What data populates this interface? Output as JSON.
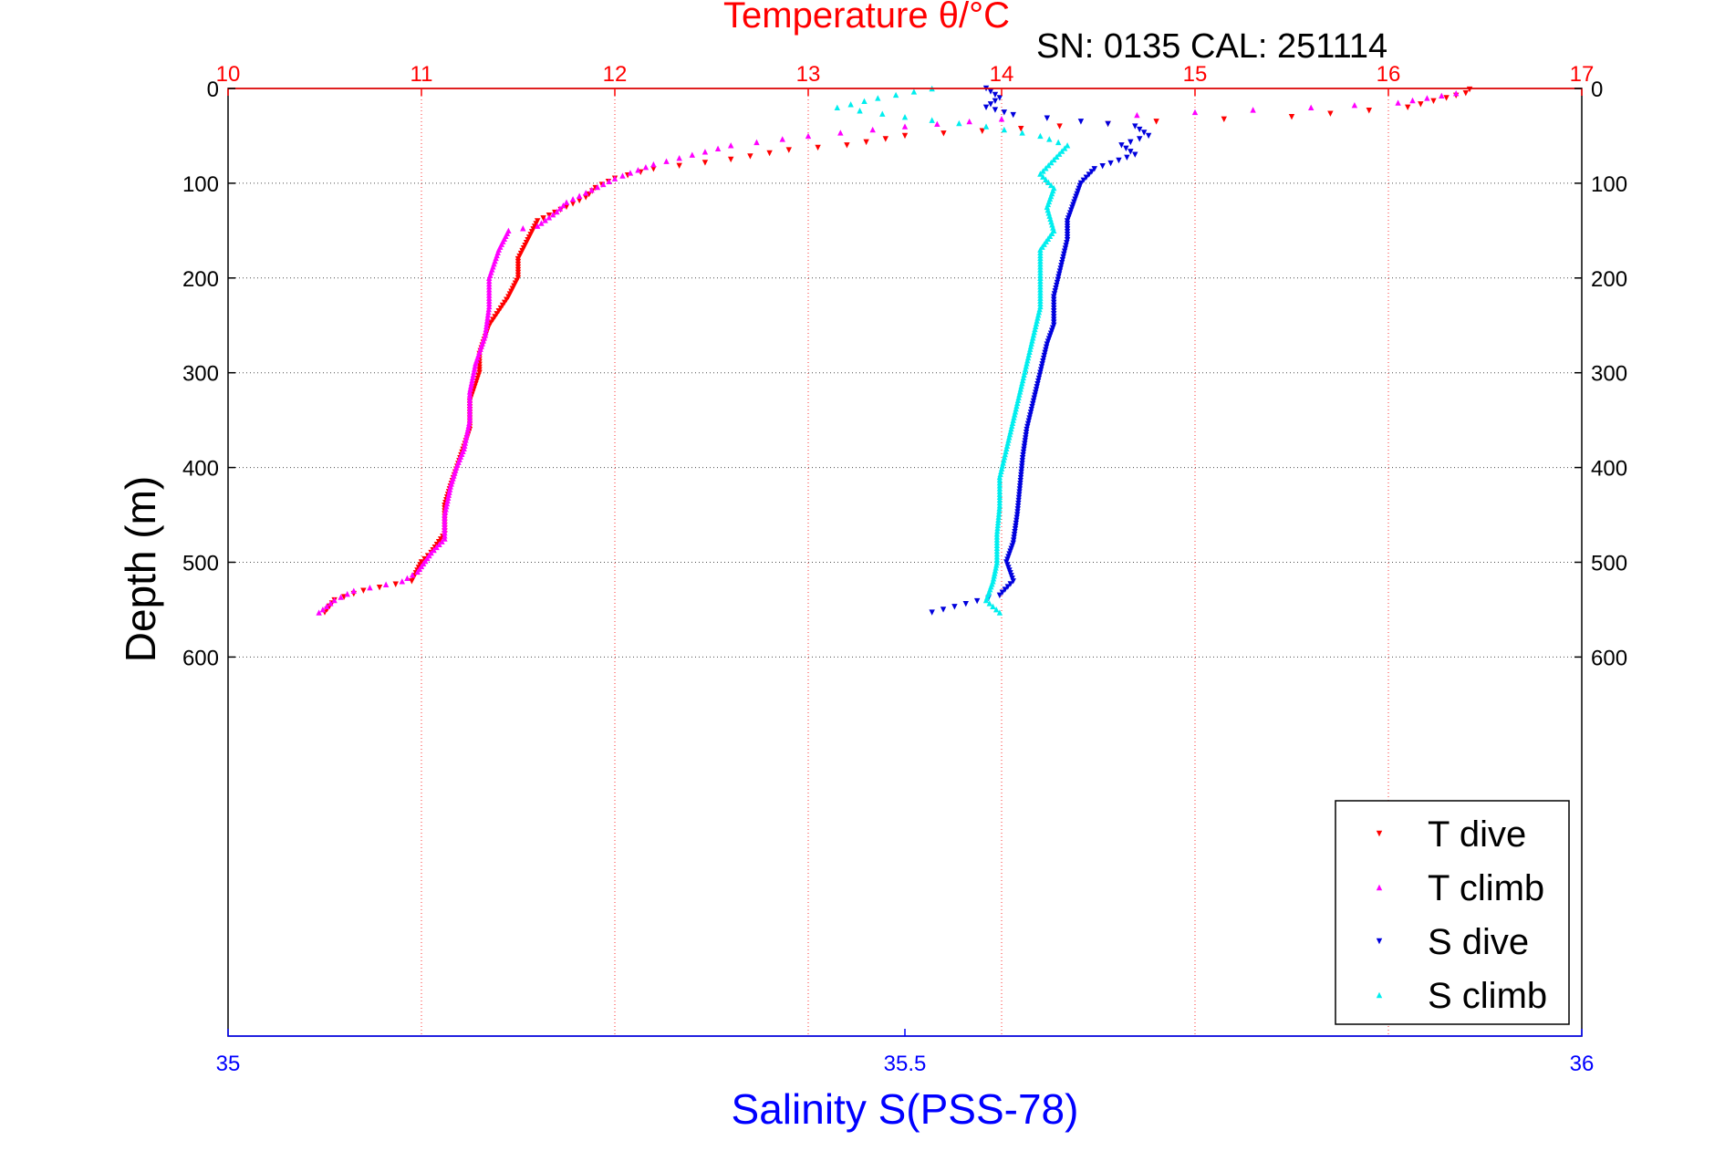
{
  "chart_data": {
    "type": "scatter",
    "title": "Temperature θ/°C",
    "subtitle": "SN: 0135  CAL: 251114",
    "top_axis": {
      "label": "Temperature θ/°C",
      "range": [
        10,
        17
      ],
      "ticks": [
        "10",
        "11",
        "12",
        "13",
        "14",
        "15",
        "16",
        "17"
      ],
      "color": "#ff0000"
    },
    "bottom_axis": {
      "label": "Salinity S(PSS-78)",
      "range": [
        35,
        36
      ],
      "ticks": [
        "35",
        "35.5",
        "36"
      ],
      "color": "#0000ff"
    },
    "y_axis": {
      "label": "Depth (m)",
      "range": [
        0,
        1000
      ],
      "inverted": true,
      "ticks": [
        "0",
        "100",
        "200",
        "300",
        "400",
        "500",
        "600"
      ]
    },
    "grid": true,
    "legend_position": "bottom-right",
    "legend": [
      "T dive",
      "T climb",
      "S dive",
      "S climb"
    ],
    "series": [
      {
        "name": "T dive",
        "axis": "temperature",
        "color": "#ff0000",
        "marker": "triangle-down",
        "points": [
          [
            16.42,
            1
          ],
          [
            16.4,
            5
          ],
          [
            16.3,
            10
          ],
          [
            16.1,
            20
          ],
          [
            15.5,
            30
          ],
          [
            14.8,
            35
          ],
          [
            14.3,
            40
          ],
          [
            13.9,
            45
          ],
          [
            13.5,
            50
          ],
          [
            13.2,
            60
          ],
          [
            12.9,
            65
          ],
          [
            12.6,
            75
          ],
          [
            12.2,
            85
          ],
          [
            12.0,
            95
          ],
          [
            11.9,
            105
          ],
          [
            11.85,
            115
          ],
          [
            11.75,
            125
          ],
          [
            11.6,
            140
          ],
          [
            11.55,
            160
          ],
          [
            11.5,
            180
          ],
          [
            11.5,
            200
          ],
          [
            11.45,
            220
          ],
          [
            11.35,
            250
          ],
          [
            11.3,
            280
          ],
          [
            11.3,
            300
          ],
          [
            11.25,
            330
          ],
          [
            11.25,
            360
          ],
          [
            11.2,
            390
          ],
          [
            11.15,
            420
          ],
          [
            11.12,
            440
          ],
          [
            11.12,
            470
          ],
          [
            11.05,
            490
          ],
          [
            11.0,
            500
          ],
          [
            10.95,
            520
          ],
          [
            10.7,
            530
          ],
          [
            10.55,
            540
          ],
          [
            10.5,
            553
          ]
        ]
      },
      {
        "name": "T climb",
        "axis": "temperature",
        "color": "#ff00ff",
        "marker": "triangle-up",
        "points": [
          [
            16.35,
            5
          ],
          [
            16.2,
            10
          ],
          [
            16.05,
            15
          ],
          [
            15.6,
            20
          ],
          [
            15.0,
            25
          ],
          [
            14.7,
            28
          ],
          [
            14.0,
            32
          ],
          [
            13.5,
            40
          ],
          [
            13.0,
            50
          ],
          [
            12.6,
            60
          ],
          [
            12.4,
            70
          ],
          [
            12.2,
            80
          ],
          [
            12.0,
            95
          ],
          [
            11.85,
            110
          ],
          [
            11.75,
            120
          ],
          [
            11.7,
            130
          ],
          [
            11.6,
            145
          ],
          [
            11.45,
            150
          ],
          [
            11.4,
            170
          ],
          [
            11.35,
            200
          ],
          [
            11.35,
            230
          ],
          [
            11.33,
            260
          ],
          [
            11.28,
            290
          ],
          [
            11.25,
            320
          ],
          [
            11.25,
            350
          ],
          [
            11.22,
            380
          ],
          [
            11.18,
            400
          ],
          [
            11.15,
            420
          ],
          [
            11.12,
            450
          ],
          [
            11.12,
            475
          ],
          [
            11.05,
            490
          ],
          [
            10.98,
            510
          ],
          [
            10.9,
            520
          ],
          [
            10.65,
            530
          ],
          [
            10.55,
            540
          ],
          [
            10.47,
            553
          ]
        ]
      },
      {
        "name": "S dive",
        "axis": "salinity",
        "color": "#0000dd",
        "marker": "triangle-down",
        "points": [
          [
            35.56,
            0
          ],
          [
            35.57,
            10
          ],
          [
            35.56,
            20
          ],
          [
            35.58,
            28
          ],
          [
            35.63,
            35
          ],
          [
            35.67,
            40
          ],
          [
            35.68,
            50
          ],
          [
            35.66,
            60
          ],
          [
            35.67,
            70
          ],
          [
            35.64,
            85
          ],
          [
            35.63,
            100
          ],
          [
            35.625,
            120
          ],
          [
            35.62,
            140
          ],
          [
            35.62,
            160
          ],
          [
            35.615,
            190
          ],
          [
            35.61,
            220
          ],
          [
            35.61,
            250
          ],
          [
            35.605,
            270
          ],
          [
            35.6,
            300
          ],
          [
            35.595,
            330
          ],
          [
            35.59,
            360
          ],
          [
            35.587,
            390
          ],
          [
            35.585,
            420
          ],
          [
            35.583,
            450
          ],
          [
            35.58,
            480
          ],
          [
            35.575,
            500
          ],
          [
            35.58,
            520
          ],
          [
            35.57,
            535
          ],
          [
            35.52,
            553
          ]
        ]
      },
      {
        "name": "S climb",
        "axis": "salinity",
        "color": "#00eeee",
        "marker": "triangle-up",
        "points": [
          [
            35.52,
            0
          ],
          [
            35.48,
            10
          ],
          [
            35.45,
            20
          ],
          [
            35.5,
            30
          ],
          [
            35.56,
            40
          ],
          [
            35.6,
            50
          ],
          [
            35.62,
            60
          ],
          [
            35.61,
            75
          ],
          [
            35.6,
            90
          ],
          [
            35.61,
            105
          ],
          [
            35.605,
            125
          ],
          [
            35.61,
            150
          ],
          [
            35.6,
            170
          ],
          [
            35.6,
            200
          ],
          [
            35.6,
            230
          ],
          [
            35.595,
            260
          ],
          [
            35.59,
            290
          ],
          [
            35.585,
            320
          ],
          [
            35.58,
            350
          ],
          [
            35.575,
            380
          ],
          [
            35.57,
            410
          ],
          [
            35.57,
            440
          ],
          [
            35.568,
            470
          ],
          [
            35.568,
            500
          ],
          [
            35.565,
            520
          ],
          [
            35.56,
            540
          ],
          [
            35.57,
            553
          ]
        ]
      }
    ]
  }
}
